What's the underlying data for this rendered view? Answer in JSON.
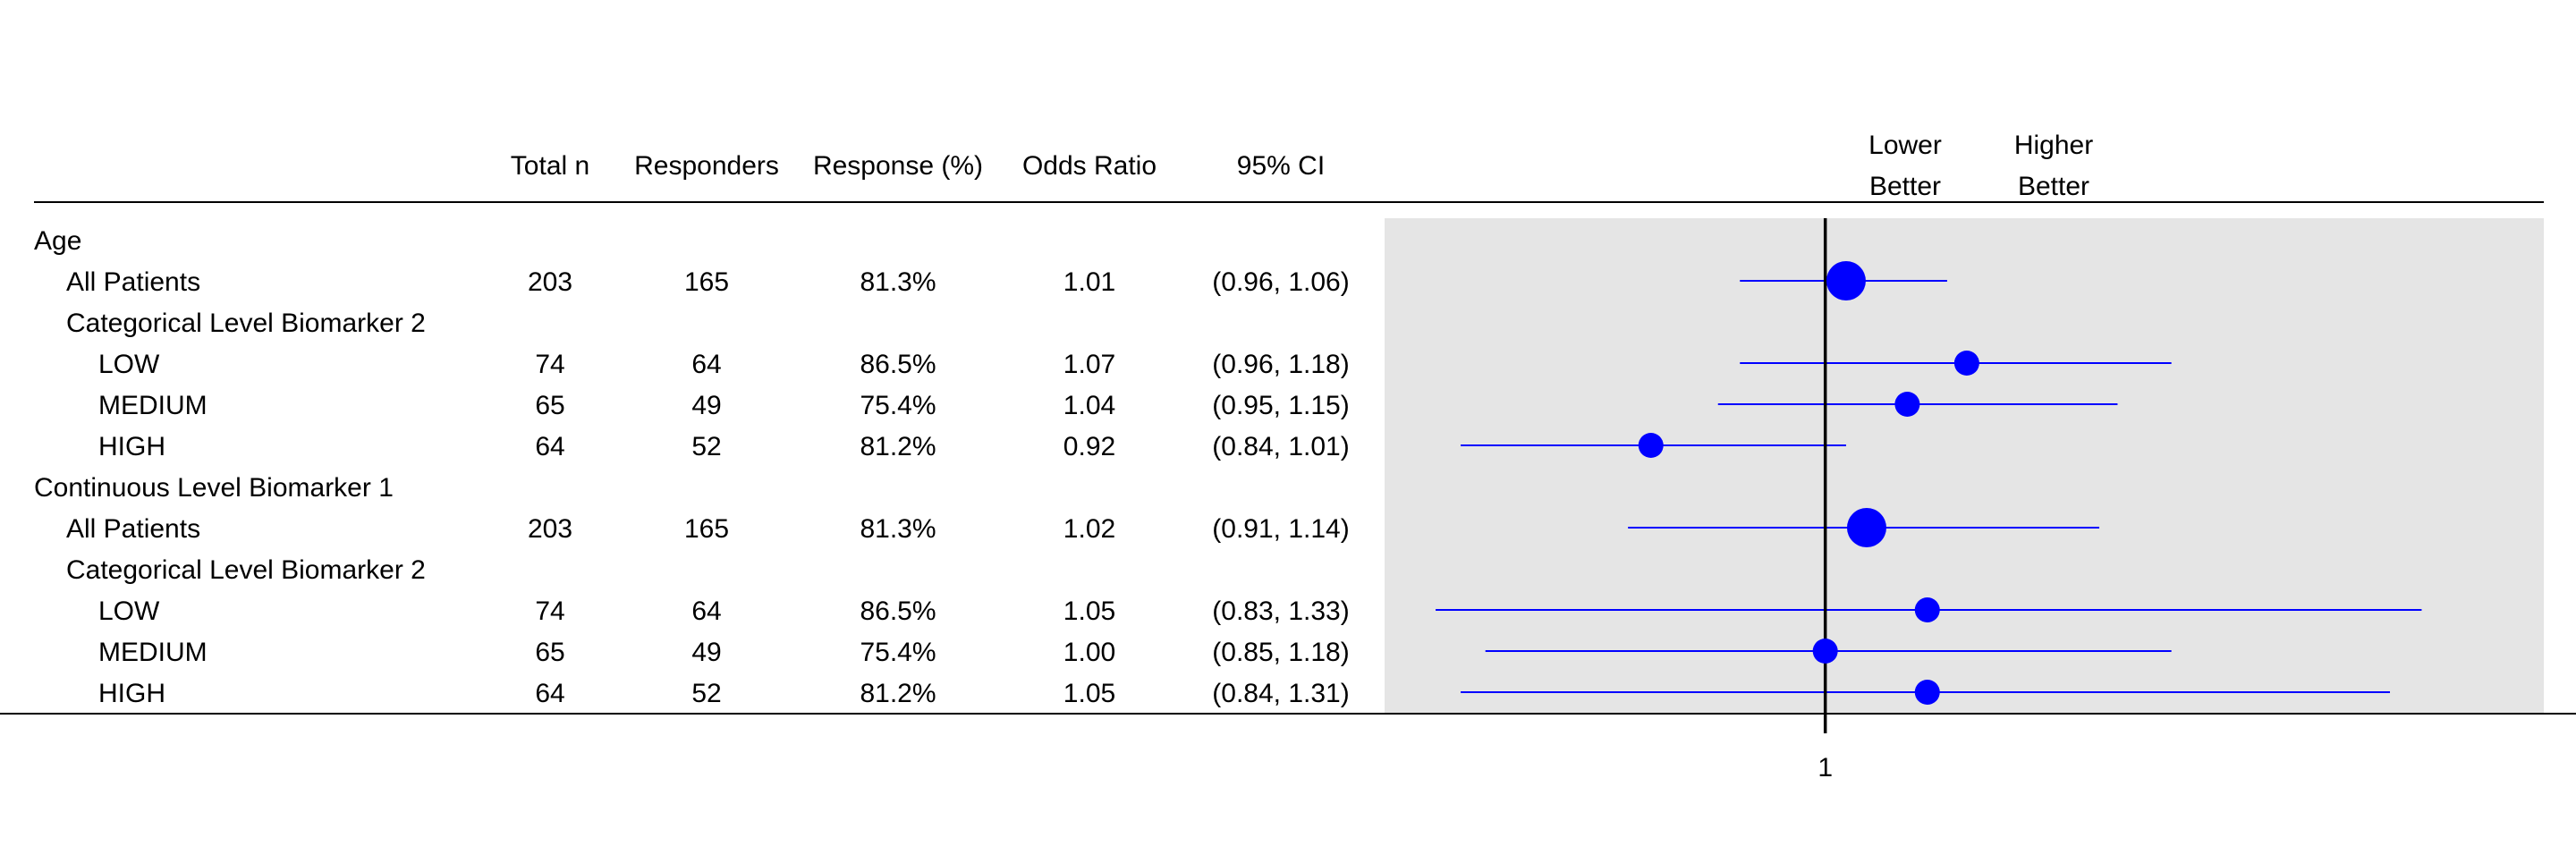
{
  "columns": {
    "total_n": "Total n",
    "responders": "Responders",
    "response_pct": "Response (%)",
    "odds_ratio": "Odds Ratio",
    "ci": "95% CI"
  },
  "better_labels": {
    "lower_line1": "Lower",
    "lower_line2": "Better",
    "higher_line1": "Higher",
    "higher_line2": "Better"
  },
  "axis": {
    "tick_label": "1"
  },
  "colors": {
    "panel_bg": "#e5e5e5",
    "marker": "#0000ff",
    "reference_line": "#000000"
  },
  "rows": [
    {
      "label": "Age",
      "indent": 0
    },
    {
      "label": "All Patients",
      "indent": 1,
      "total_n": "203",
      "responders": "165",
      "response_pct": "81.3%",
      "odds_ratio": "1.01",
      "ci": "(0.96, 1.06)"
    },
    {
      "label": "Categorical Level Biomarker 2",
      "indent": 1
    },
    {
      "label": "LOW",
      "indent": 2,
      "total_n": "74",
      "responders": "64",
      "response_pct": "86.5%",
      "odds_ratio": "1.07",
      "ci": "(0.96, 1.18)"
    },
    {
      "label": "MEDIUM",
      "indent": 2,
      "total_n": "65",
      "responders": "49",
      "response_pct": "75.4%",
      "odds_ratio": "1.04",
      "ci": "(0.95, 1.15)"
    },
    {
      "label": "HIGH",
      "indent": 2,
      "total_n": "64",
      "responders": "52",
      "response_pct": "81.2%",
      "odds_ratio": "0.92",
      "ci": "(0.84, 1.01)"
    },
    {
      "label": "Continuous Level Biomarker 1",
      "indent": 0
    },
    {
      "label": "All Patients",
      "indent": 1,
      "total_n": "203",
      "responders": "165",
      "response_pct": "81.3%",
      "odds_ratio": "1.02",
      "ci": "(0.91, 1.14)"
    },
    {
      "label": "Categorical Level Biomarker 2",
      "indent": 1
    },
    {
      "label": "LOW",
      "indent": 2,
      "total_n": "74",
      "responders": "64",
      "response_pct": "86.5%",
      "odds_ratio": "1.05",
      "ci": "(0.83, 1.33)"
    },
    {
      "label": "MEDIUM",
      "indent": 2,
      "total_n": "65",
      "responders": "49",
      "response_pct": "75.4%",
      "odds_ratio": "1.00",
      "ci": "(0.85, 1.18)"
    },
    {
      "label": "HIGH",
      "indent": 2,
      "total_n": "64",
      "responders": "52",
      "response_pct": "81.2%",
      "odds_ratio": "1.05",
      "ci": "(0.84, 1.31)"
    }
  ],
  "chart_data": {
    "type": "scatter",
    "subtype": "forest",
    "x_scale": "log",
    "xlim": [
      0.81,
      1.41
    ],
    "reference_line": 1,
    "xticks": [
      1
    ],
    "legend": "none",
    "points": [
      {
        "row": 1,
        "or": 1.01,
        "lower": 0.96,
        "upper": 1.06,
        "n": 203
      },
      {
        "row": 3,
        "or": 1.07,
        "lower": 0.96,
        "upper": 1.18,
        "n": 74
      },
      {
        "row": 4,
        "or": 1.04,
        "lower": 0.95,
        "upper": 1.15,
        "n": 65
      },
      {
        "row": 5,
        "or": 0.92,
        "lower": 0.84,
        "upper": 1.01,
        "n": 64
      },
      {
        "row": 7,
        "or": 1.02,
        "lower": 0.91,
        "upper": 1.14,
        "n": 203
      },
      {
        "row": 9,
        "or": 1.05,
        "lower": 0.83,
        "upper": 1.33,
        "n": 74
      },
      {
        "row": 10,
        "or": 1.0,
        "lower": 0.85,
        "upper": 1.18,
        "n": 65
      },
      {
        "row": 11,
        "or": 1.05,
        "lower": 0.84,
        "upper": 1.31,
        "n": 64
      }
    ]
  }
}
